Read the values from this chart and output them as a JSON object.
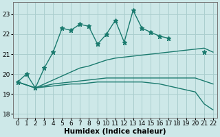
{
  "x": [
    0,
    1,
    2,
    3,
    4,
    5,
    6,
    7,
    8,
    9,
    10,
    11,
    12,
    13,
    14,
    15,
    16,
    17,
    18,
    19,
    20,
    21,
    22
  ],
  "jagged_line": {
    "x": [
      0,
      1,
      2,
      3,
      4,
      5,
      6,
      7,
      8,
      9,
      10,
      11,
      12,
      13,
      14,
      15,
      16,
      17,
      18,
      19,
      20,
      21
    ],
    "y": [
      19.6,
      20.0,
      19.3,
      20.3,
      21.1,
      22.3,
      22.2,
      22.5,
      22.4,
      21.5,
      22.0,
      22.7,
      21.6,
      23.2,
      22.3,
      22.1,
      21.9,
      21.8,
      null,
      null,
      null,
      21.1
    ]
  },
  "smooth_rise": {
    "x": [
      0,
      2,
      3,
      4,
      5,
      6,
      7,
      8,
      9,
      10,
      11,
      12,
      13,
      14,
      15,
      16,
      17,
      18,
      19,
      20,
      21,
      22
    ],
    "y": [
      19.6,
      19.3,
      19.5,
      19.7,
      19.9,
      20.1,
      20.3,
      20.4,
      20.55,
      20.7,
      20.8,
      20.85,
      20.9,
      20.95,
      21.0,
      21.05,
      21.1,
      21.15,
      21.2,
      21.25,
      21.3,
      21.1
    ]
  },
  "flat_line": {
    "x": [
      0,
      2,
      3,
      4,
      5,
      6,
      7,
      8,
      9,
      10,
      11,
      12,
      13,
      14,
      15,
      16,
      17,
      18,
      19,
      20,
      21,
      22
    ],
    "y": [
      19.6,
      19.3,
      19.4,
      19.5,
      19.55,
      19.6,
      19.65,
      19.7,
      19.75,
      19.8,
      19.8,
      19.8,
      19.8,
      19.8,
      19.8,
      19.8,
      19.8,
      19.8,
      19.8,
      19.8,
      19.65,
      19.5
    ]
  },
  "drop_line": {
    "x": [
      0,
      2,
      3,
      4,
      5,
      6,
      7,
      8,
      9,
      10,
      11,
      12,
      13,
      14,
      15,
      16,
      17,
      18,
      19,
      20,
      21,
      22
    ],
    "y": [
      19.6,
      19.3,
      19.35,
      19.4,
      19.45,
      19.5,
      19.5,
      19.55,
      19.6,
      19.6,
      19.6,
      19.6,
      19.6,
      19.6,
      19.55,
      19.5,
      19.4,
      19.3,
      19.2,
      19.1,
      18.5,
      18.2
    ]
  },
  "color": "#1a7a6e",
  "bg_color": "#cde8e8",
  "grid_color": "#aacece",
  "xlabel": "Humidex (Indice chaleur)",
  "ylim": [
    17.8,
    23.6
  ],
  "xlim": [
    -0.5,
    22.5
  ],
  "yticks": [
    18,
    19,
    20,
    21,
    22,
    23
  ],
  "xticks": [
    0,
    1,
    2,
    3,
    4,
    5,
    6,
    7,
    8,
    9,
    10,
    11,
    12,
    13,
    14,
    15,
    16,
    17,
    18,
    19,
    20,
    21,
    22
  ],
  "marker": "*",
  "markersize": 4.5
}
